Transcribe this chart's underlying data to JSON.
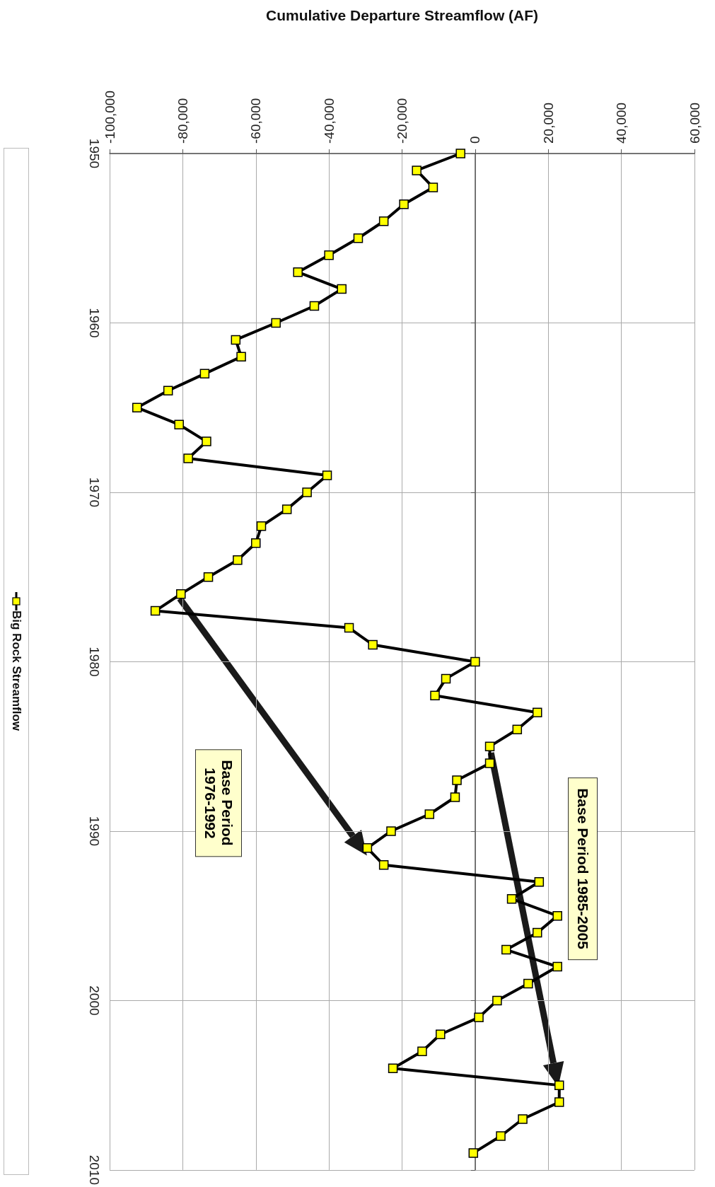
{
  "chart_data": {
    "type": "line",
    "xlabel": "Cumulative Departure Streamflow (AF)",
    "series": [
      {
        "name": "Big Rock Streamflow",
        "color": "#000000",
        "x": [
          -4000,
          -16000,
          -11500,
          -19500,
          -25000,
          -32000,
          -40000,
          -48500,
          -36500,
          -44000,
          -54500,
          -65500,
          -64000,
          -74000,
          -84000,
          -92500,
          -81000,
          -73500,
          -78500,
          -40500,
          -46000,
          -51500,
          -58500,
          -60000,
          -65000,
          -73000,
          -80500,
          -87500,
          -34500,
          -28000,
          0,
          -8000,
          -11000,
          17000,
          11500,
          4000,
          4000,
          -5000,
          -5500,
          -12500,
          -23000,
          -29500,
          -25000,
          17500,
          10000,
          22500,
          17000,
          8500,
          22500,
          14500,
          6000,
          1000,
          -9500,
          -14500,
          -22500,
          23000,
          23000,
          13000,
          7000,
          -500
        ],
        "values": [
          1950,
          1951,
          1952,
          1953,
          1954,
          1955,
          1956,
          1957,
          1958,
          1959,
          1960,
          1961,
          1962,
          1963,
          1964,
          1965,
          1966,
          1967,
          1968,
          1969,
          1970,
          1971,
          1972,
          1973,
          1974,
          1975,
          1976,
          1977,
          1978,
          1979,
          1980,
          1981,
          1982,
          1983,
          1984,
          1985,
          1986,
          1987,
          1988,
          1989,
          1990,
          1991,
          1992,
          1993,
          1994,
          1995,
          1996,
          1997,
          1998,
          1999,
          2000,
          2001,
          2002,
          2003,
          2004,
          2005,
          2006,
          2007,
          2008,
          2009
        ]
      }
    ],
    "xlim": [
      -100000,
      60000
    ],
    "xticks": [
      {
        "value": -100000,
        "label": "-100,000"
      },
      {
        "value": -80000,
        "label": "-80,000"
      },
      {
        "value": -60000,
        "label": "-60,000"
      },
      {
        "value": -40000,
        "label": "-40,000"
      },
      {
        "value": -20000,
        "label": "-20,000"
      },
      {
        "value": 0,
        "label": "0"
      },
      {
        "value": 20000,
        "label": "20,000"
      },
      {
        "value": 40000,
        "label": "40,000"
      },
      {
        "value": 60000,
        "label": "60,000"
      }
    ],
    "ylim": [
      2010,
      1950
    ],
    "yticks": [
      1950,
      1960,
      1970,
      1980,
      1990,
      2000,
      2010
    ],
    "annotations": [
      "Base Period\n1976-1992",
      "Base Period 1985-2005"
    ],
    "grid": true,
    "legend": "left",
    "marker": "square",
    "line_style": "solid"
  }
}
